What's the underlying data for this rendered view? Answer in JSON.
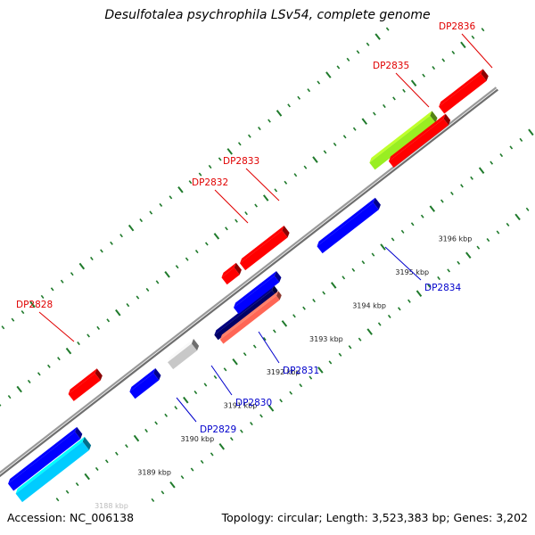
{
  "title": "Desulfotalea psychrophila LSv54, complete genome",
  "accession_text": "Accession: NC_006138",
  "summary_text": "Topology: circular; Length: 3,523,383 bp; Genes: 3,202",
  "colors": {
    "backbone": "#8a8a8a",
    "tick": "#1f7a2b",
    "forward_label": "#e00000",
    "reverse_label": "#0000cc"
  },
  "scale_labels": [
    "3188 kbp",
    "3189 kbp",
    "3190 kbp",
    "3191 kbp",
    "3192 kbp",
    "3193 kbp",
    "3194 kbp",
    "3195 kbp",
    "3196 kbp"
  ],
  "genes": [
    {
      "label": "DP2828",
      "strand": "forward",
      "color": "#ff0000"
    },
    {
      "label": "DP2829",
      "strand": "reverse",
      "color": "#0000ff"
    },
    {
      "label": "DP2830",
      "strand": "reverse",
      "color": "#c8c8c8"
    },
    {
      "label": "DP2831",
      "strand": "reverse",
      "color": "#000066"
    },
    {
      "label": "DP2832",
      "strand": "forward",
      "color": "#ff0000"
    },
    {
      "label": "DP2833",
      "strand": "forward",
      "color": "#ff0000"
    },
    {
      "label": "DP2834",
      "strand": "reverse",
      "color": "#0000ff"
    },
    {
      "label": "DP2835",
      "strand": "forward",
      "color": "#99ee22"
    },
    {
      "label": "DP2836",
      "strand": "forward",
      "color": "#ff0000"
    }
  ],
  "unlabeled_features": [
    {
      "strand": "reverse",
      "color": "#0000ff"
    },
    {
      "strand": "reverse",
      "color": "#00ccff"
    },
    {
      "strand": "reverse",
      "color": "#0000ff"
    },
    {
      "strand": "reverse",
      "color": "#ff6655"
    },
    {
      "strand": "forward",
      "color": "#ff0000"
    }
  ]
}
